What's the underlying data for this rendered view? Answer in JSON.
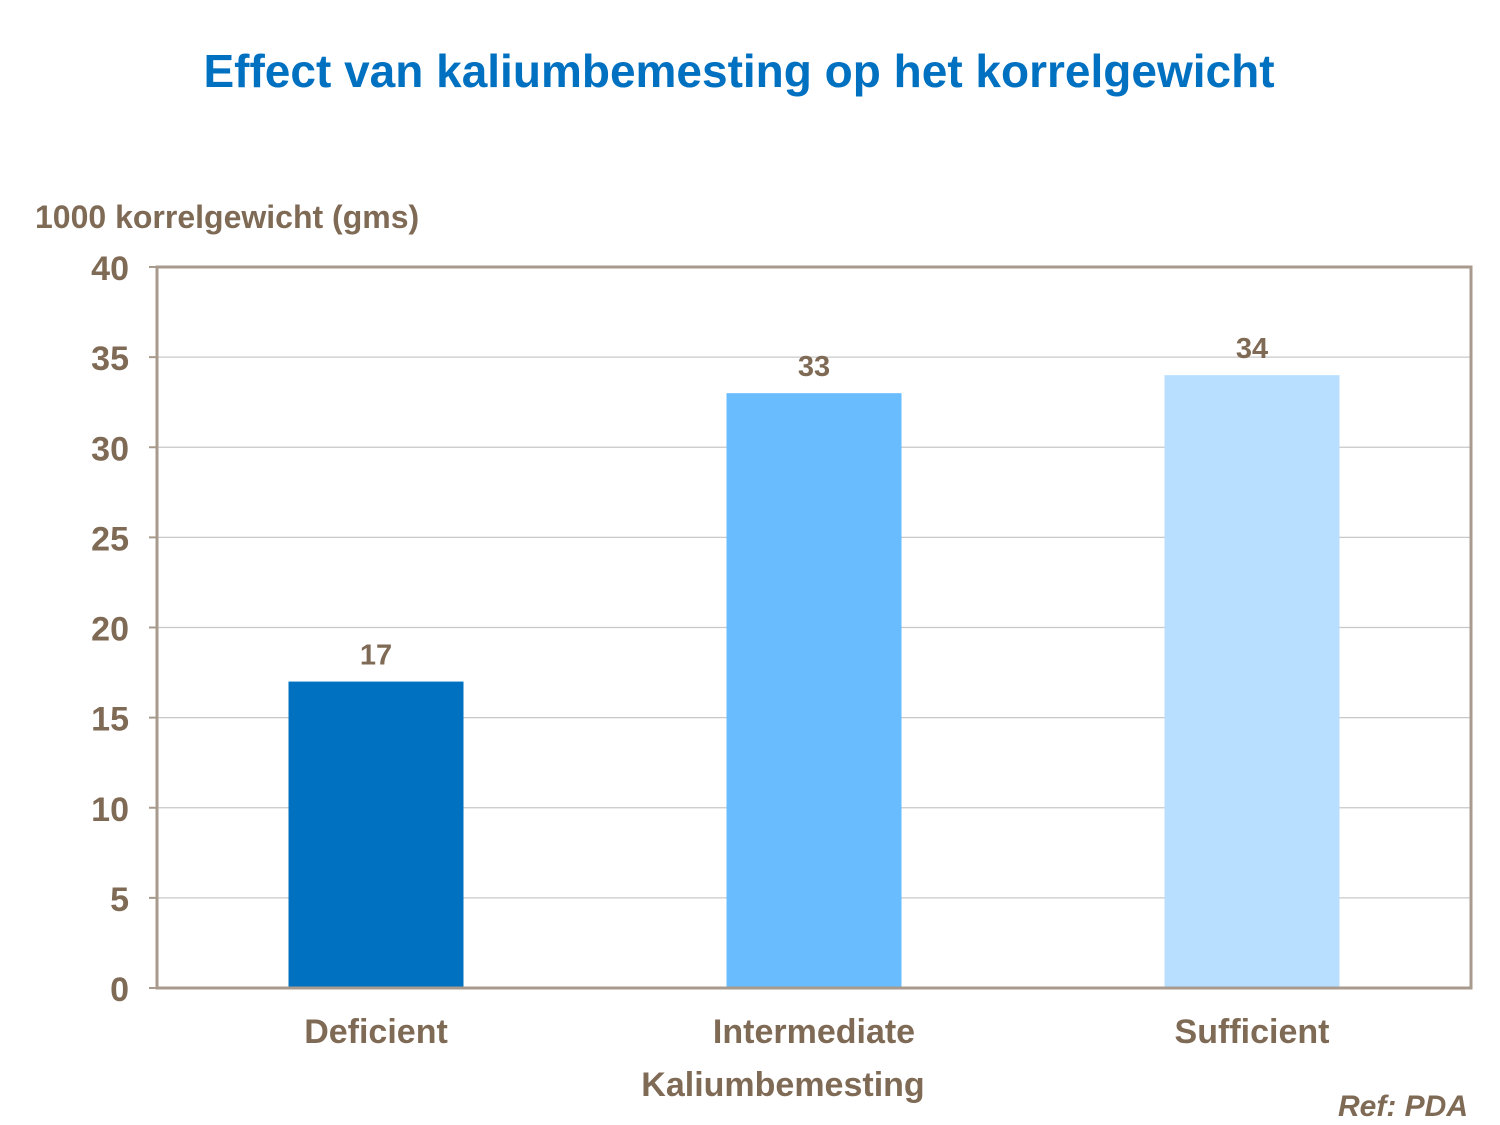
{
  "colors": {
    "title": "#0070c0",
    "text": "#7f6a55",
    "axis": "#a89a8c",
    "grid": "#c8c8c8",
    "bars": [
      "#0070c0",
      "#69bdff",
      "#b8dfff"
    ]
  },
  "chart_data": {
    "type": "bar",
    "title": "Effect van kaliumbemesting op het korrelgewicht",
    "ylabel": "1000 korrelgewicht (gms)",
    "xlabel": "Kaliumbemesting",
    "categories": [
      "Deficient",
      "Intermediate",
      "Sufficient"
    ],
    "values": [
      17,
      33,
      34
    ],
    "data_labels": [
      "17",
      "33",
      "34"
    ],
    "ylim": [
      0,
      40
    ],
    "yticks": [
      0,
      5,
      10,
      15,
      20,
      25,
      30,
      35,
      40
    ],
    "grid": true,
    "legend": "none"
  },
  "footer": {
    "reference": "Ref: PDA"
  }
}
